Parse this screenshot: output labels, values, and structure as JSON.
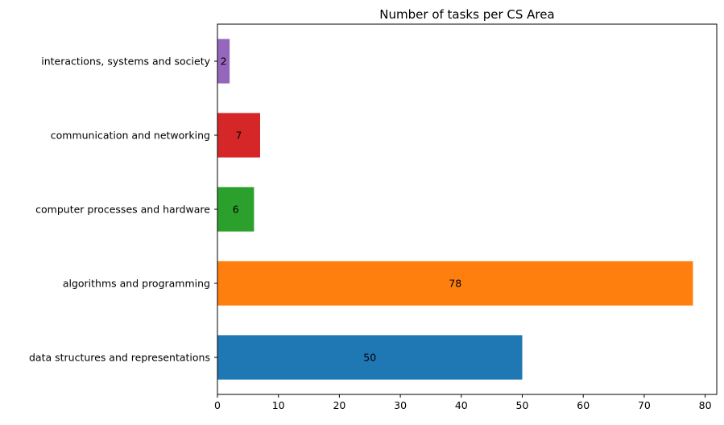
{
  "chart_data": {
    "type": "bar",
    "orientation": "horizontal",
    "title": "Number of tasks per CS Area",
    "xlabel": "",
    "ylabel": "",
    "categories": [
      "data structures and representations",
      "algorithms and programming",
      "computer processes and hardware",
      "communication and networking",
      "interactions, systems and society"
    ],
    "values": [
      50,
      78,
      6,
      7,
      2
    ],
    "data_labels": [
      "50",
      "78",
      "6",
      "7",
      "2"
    ],
    "colors": [
      "#1f77b4",
      "#ff7f0e",
      "#2ca02c",
      "#d62728",
      "#9467bd"
    ],
    "xlim": [
      0,
      81.9
    ],
    "xticks": [
      0,
      10,
      20,
      30,
      40,
      50,
      60,
      70,
      80
    ],
    "grid": false,
    "legend": "none"
  }
}
